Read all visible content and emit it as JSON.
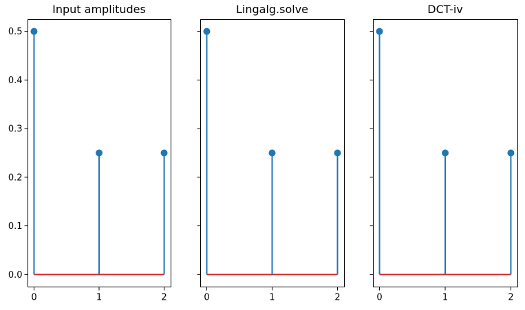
{
  "chart_data": [
    {
      "type": "stem",
      "title": "Input amplitudes",
      "x": [
        0,
        1,
        2
      ],
      "values": [
        0.5,
        0.25,
        0.25
      ],
      "xlim": [
        -0.1,
        2.1
      ],
      "ylim": [
        -0.025,
        0.525
      ],
      "xticks": [
        "0",
        "1",
        "2"
      ],
      "yticks": [
        "0.0",
        "0.1",
        "0.2",
        "0.3",
        "0.4",
        "0.5"
      ],
      "show_yticklabels": true
    },
    {
      "type": "stem",
      "title": "Lingalg.solve",
      "x": [
        0,
        1,
        2
      ],
      "values": [
        0.5,
        0.25,
        0.25
      ],
      "xlim": [
        -0.1,
        2.1
      ],
      "ylim": [
        -0.025,
        0.525
      ],
      "xticks": [
        "0",
        "1",
        "2"
      ],
      "yticks": [
        "0.0",
        "0.1",
        "0.2",
        "0.3",
        "0.4",
        "0.5"
      ],
      "show_yticklabels": false
    },
    {
      "type": "stem",
      "title": "DCT-iv",
      "x": [
        0,
        1,
        2
      ],
      "values": [
        0.5,
        0.25,
        0.25
      ],
      "xlim": [
        -0.1,
        2.1
      ],
      "ylim": [
        -0.025,
        0.525
      ],
      "xticks": [
        "0",
        "1",
        "2"
      ],
      "yticks": [
        "0.0",
        "0.1",
        "0.2",
        "0.3",
        "0.4",
        "0.5"
      ],
      "show_yticklabels": false
    }
  ],
  "colors": {
    "stem": "#1f77b4",
    "baseline": "#d62728"
  },
  "grid": false,
  "legend": "none"
}
